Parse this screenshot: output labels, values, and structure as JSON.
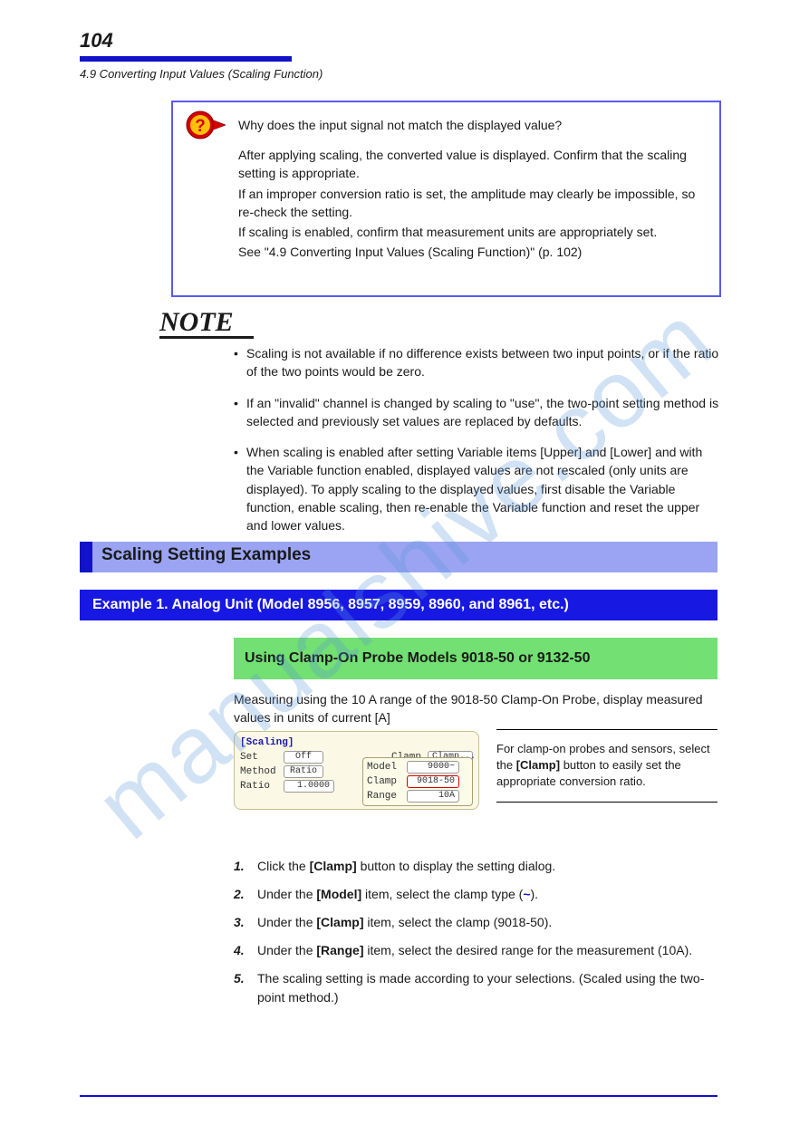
{
  "page": {
    "number": "104",
    "section_title": "4.9 Converting Input Values (Scaling Function)",
    "watermark": "manualshive.com"
  },
  "help_box": {
    "lead": "Why does the input signal not match the displayed value?",
    "p1": "After applying scaling, the converted value is displayed. Confirm that the scaling setting is appropriate.",
    "p2": "If an improper conversion ratio is set, the amplitude may clearly be impossible, so re-check the setting.",
    "p3": "If scaling is enabled, confirm that measurement units are appropriately set.",
    "see": "See \"4.9 Converting Input Values (Scaling Function)\" (p. 102)"
  },
  "note": {
    "items": [
      "Scaling is not available if no difference exists between two input points, or if the ratio of the two points would be zero.",
      "If an \"invalid\" channel is changed by scaling to \"use\", the two-point setting method is selected and previously set values are replaced by defaults.",
      "When scaling is enabled after setting Variable items [Upper] and [Lower] and with the Variable function enabled, displayed values are not rescaled (only units are displayed). To apply scaling to the displayed values, first disable the Variable function, enable scaling, then re-enable the Variable function and reset the upper and lower values."
    ]
  },
  "heading": {
    "title": "Scaling Setting Examples"
  },
  "blue_band": "Example 1. Analog Unit (Model 8956, 8957, 8959, 8960, and 8961, etc.)",
  "green_band": "Using Clamp-On Probe Models 9018-50 or 9132-50",
  "para1": "Measuring using the 10 A range of the 9018-50 Clamp-On Probe, display measured values in units of current [A]",
  "settings_card": {
    "title": "[Scaling]",
    "rows": [
      {
        "label": "Set",
        "value": "Off"
      },
      {
        "label": "Method",
        "value": "Ratio"
      },
      {
        "label": "Ratio",
        "value": "1.0000"
      }
    ],
    "clamp_btn": {
      "label": "Clamp",
      "value": "Clamp..."
    },
    "popup": [
      {
        "label": "Model",
        "value": "9000~",
        "sel": false
      },
      {
        "label": "Clamp",
        "value": "9018-50",
        "sel": true
      },
      {
        "label": "Range",
        "value": "10A",
        "sel": false
      }
    ],
    "colors": {
      "card_bg": "#fbf8e6",
      "card_border": "#c8c090",
      "field_bg": "#ffffff",
      "field_border": "#999999",
      "field_sel_border": "#d40000",
      "title_blue": "#1818a8"
    }
  },
  "side_caption": {
    "line1": "For clamp-on probes and sensors,",
    "line2": "select the <b>[Clamp]</b> button to",
    "line3": "easily set the appropriate",
    "line4": "conversion ratio."
  },
  "steps": [
    {
      "n": "1.",
      "html": "Click the <b>[Clamp]</b> button to display the setting dialog."
    },
    {
      "n": "2.",
      "html": "Under the <b>[Model]</b> item, select the clamp type (<span class='tilde'>~</span>)."
    },
    {
      "n": "3.",
      "html": "Under the <b>[Clamp]</b> item, select the clamp (9018-50)."
    },
    {
      "n": "4.",
      "html": "Under the <b>[Range]</b> item, select the desired range for the measurement (10A)."
    },
    {
      "n": "5.",
      "html": "The scaling setting is made according to your selections. (Scaled using the two-point method.)"
    }
  ],
  "colors": {
    "brand_blue": "#1212c9",
    "light_blue": "#9aa4f2",
    "band_blue": "#1818e3",
    "green": "#72e072",
    "text": "#1a1a1a",
    "help_border": "#5a5af0"
  }
}
